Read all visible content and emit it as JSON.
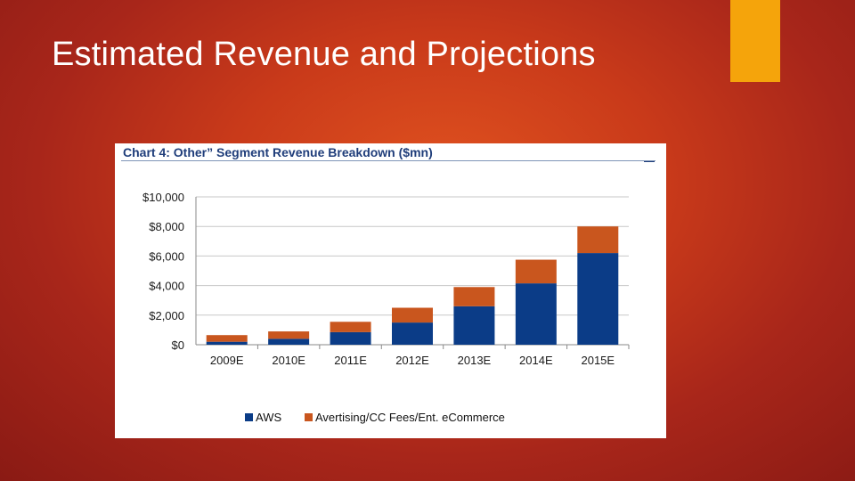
{
  "slide": {
    "title": "Estimated Revenue and Projections"
  },
  "chart_data": {
    "type": "bar",
    "stacked": true,
    "title": "Chart 4: Other” Segment Revenue Breakdown ($mn)",
    "categories": [
      "2009E",
      "2010E",
      "2011E",
      "2012E",
      "2013E",
      "2014E",
      "2015E"
    ],
    "series": [
      {
        "name": "AWS",
        "color": "#0b3c87",
        "values": [
          200,
          400,
          850,
          1500,
          2600,
          4150,
          6200
        ]
      },
      {
        "name": "Avertising/CC Fees/Ent. eCommerce",
        "color": "#c9561e",
        "values": [
          450,
          500,
          700,
          1000,
          1300,
          1600,
          1800
        ]
      }
    ],
    "ylim": [
      0,
      10000
    ],
    "yticks": [
      0,
      2000,
      4000,
      6000,
      8000,
      10000
    ],
    "ytick_labels": [
      "$0",
      "$2,000",
      "$4,000",
      "$6,000",
      "$8,000",
      "$10,000"
    ],
    "xlabel": "",
    "ylabel": "",
    "grid": true,
    "legend_position": "bottom"
  }
}
